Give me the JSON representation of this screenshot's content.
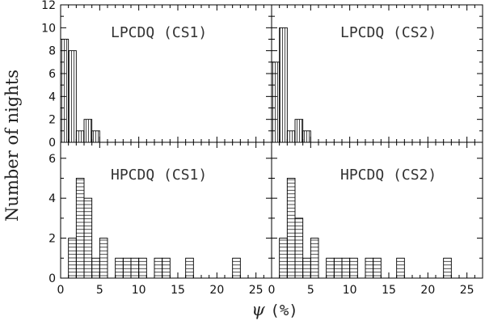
{
  "figure": {
    "ylabel": "Number of nights",
    "xlabel_symbol": "ψ",
    "xlabel_unit": "(%)"
  },
  "chart_data": [
    {
      "type": "bar",
      "title": "LPCDQ (CS1)",
      "row": "top",
      "col": "left",
      "bin_width": 1,
      "hatch": "vertical",
      "bins": [
        {
          "x": 0,
          "count": 9
        },
        {
          "x": 1,
          "count": 8
        },
        {
          "x": 2,
          "count": 1
        },
        {
          "x": 3,
          "count": 2
        },
        {
          "x": 4,
          "count": 1
        }
      ],
      "xlim": [
        0,
        27
      ],
      "ylim": [
        0,
        12
      ],
      "yticks": [
        0,
        2,
        4,
        6,
        8,
        10,
        12
      ],
      "xticks": []
    },
    {
      "type": "bar",
      "title": "LPCDQ (CS2)",
      "row": "top",
      "col": "right",
      "bin_width": 1,
      "hatch": "vertical",
      "bins": [
        {
          "x": 0,
          "count": 7
        },
        {
          "x": 1,
          "count": 10
        },
        {
          "x": 2,
          "count": 1
        },
        {
          "x": 3,
          "count": 2
        },
        {
          "x": 4,
          "count": 1
        }
      ],
      "xlim": [
        0,
        27
      ],
      "ylim": [
        0,
        12
      ],
      "yticks": [],
      "xticks": []
    },
    {
      "type": "bar",
      "title": "HPCDQ (CS1)",
      "row": "bottom",
      "col": "left",
      "bin_width": 1,
      "hatch": "horizontal",
      "bins": [
        {
          "x": 0,
          "count": 0
        },
        {
          "x": 1,
          "count": 2
        },
        {
          "x": 2,
          "count": 5
        },
        {
          "x": 3,
          "count": 4
        },
        {
          "x": 4,
          "count": 1
        },
        {
          "x": 5,
          "count": 2
        },
        {
          "x": 7,
          "count": 1
        },
        {
          "x": 8,
          "count": 1
        },
        {
          "x": 9,
          "count": 1
        },
        {
          "x": 10,
          "count": 1
        },
        {
          "x": 12,
          "count": 1
        },
        {
          "x": 13,
          "count": 1
        },
        {
          "x": 16,
          "count": 1
        },
        {
          "x": 22,
          "count": 1
        }
      ],
      "xlim": [
        0,
        27
      ],
      "ylim": [
        0,
        6.8
      ],
      "yticks": [
        0,
        2,
        4,
        6
      ],
      "xticks": [
        0,
        5,
        10,
        15,
        20,
        25
      ]
    },
    {
      "type": "bar",
      "title": "HPCDQ (CS2)",
      "row": "bottom",
      "col": "right",
      "bin_width": 1,
      "hatch": "horizontal",
      "bins": [
        {
          "x": 0,
          "count": 0
        },
        {
          "x": 1,
          "count": 2
        },
        {
          "x": 2,
          "count": 5
        },
        {
          "x": 3,
          "count": 3
        },
        {
          "x": 4,
          "count": 1
        },
        {
          "x": 5,
          "count": 2
        },
        {
          "x": 7,
          "count": 1
        },
        {
          "x": 8,
          "count": 1
        },
        {
          "x": 9,
          "count": 1
        },
        {
          "x": 10,
          "count": 1
        },
        {
          "x": 12,
          "count": 1
        },
        {
          "x": 13,
          "count": 1
        },
        {
          "x": 16,
          "count": 1
        },
        {
          "x": 22,
          "count": 1
        }
      ],
      "xlim": [
        0,
        27
      ],
      "ylim": [
        0,
        6.8
      ],
      "yticks": [],
      "xticks": [
        0,
        5,
        10,
        15,
        20,
        25
      ]
    }
  ]
}
